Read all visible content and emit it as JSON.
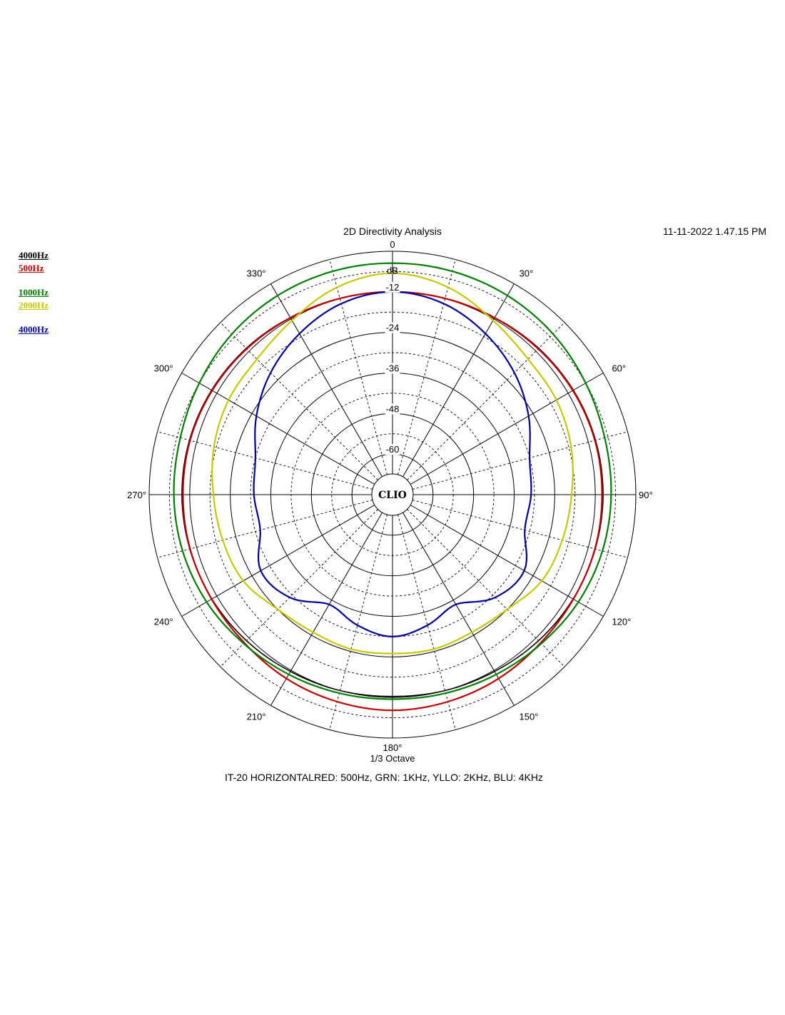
{
  "header": {
    "title": "2D Directivity Analysis",
    "timestamp": "11-11-2022 1.47.15 PM"
  },
  "footer": {
    "resolution_label": "1/3 Octave",
    "caption": "IT-20 HORIZONTALRED: 500Hz, GRN: 1KHz, YLLO: 2KHz, BLU: 4KHz"
  },
  "logo": {
    "text": "CLIO"
  },
  "legend": [
    {
      "label": "4000Hz",
      "color": "#000000"
    },
    {
      "label": "500Hz",
      "color": "#c00000"
    },
    {
      "label": "1000Hz",
      "color": "#008000"
    },
    {
      "label": "2000Hz",
      "color": "#c8c800"
    },
    {
      "label": "4000Hz",
      "color": "#000099"
    }
  ],
  "chart_data": {
    "type": "polar",
    "title": "2D Directivity Analysis",
    "radial_axis": {
      "unit": "dB",
      "range": [
        -72,
        0
      ],
      "tick_values": [
        0,
        -12,
        -24,
        -36,
        -48,
        -60
      ],
      "tick_labels": [
        "0",
        "-12",
        "-24",
        "-36",
        "-48",
        "-60"
      ]
    },
    "angular_axis": {
      "unit": "deg",
      "direction": "clockwise",
      "zero_position": "top",
      "tick_values": [
        0,
        30,
        60,
        90,
        120,
        150,
        180,
        210,
        240,
        270,
        300,
        330
      ],
      "tick_labels": [
        "0",
        "30°",
        "60°",
        "90°",
        "120°",
        "150°",
        "180°",
        "210°",
        "240°",
        "270°",
        "300°",
        "330°"
      ]
    },
    "grid": true,
    "legend_position": "top-left",
    "theta": [
      0,
      15,
      30,
      45,
      60,
      75,
      90,
      105,
      120,
      135,
      150,
      165,
      180,
      195,
      210,
      225,
      240,
      255,
      270,
      285,
      300,
      315,
      330,
      345
    ],
    "series": [
      {
        "name": "4000Hz",
        "color": "#000000",
        "values": [
          -12.0,
          -11.9,
          -11.5,
          -10.8,
          -10.2,
          -9.8,
          -9.7,
          -9.9,
          -10.3,
          -10.9,
          -11.6,
          -12.0,
          -12.3,
          -12.0,
          -11.6,
          -10.9,
          -10.3,
          -9.9,
          -9.7,
          -9.8,
          -10.2,
          -10.8,
          -11.5,
          -11.9
        ]
      },
      {
        "name": "500Hz",
        "color": "#c00000",
        "values": [
          -12.0,
          -11.9,
          -11.6,
          -11.0,
          -10.4,
          -10.0,
          -10.0,
          -10.0,
          -10.2,
          -10.0,
          -9.2,
          -8.6,
          -8.2,
          -8.6,
          -9.2,
          -10.0,
          -10.2,
          -10.0,
          -10.0,
          -10.0,
          -10.4,
          -11.0,
          -11.6,
          -11.9
        ]
      },
      {
        "name": "1000Hz",
        "color": "#008000",
        "values": [
          -3.5,
          -3.6,
          -4.0,
          -4.8,
          -6.0,
          -7.0,
          -7.3,
          -7.7,
          -8.5,
          -9.7,
          -10.6,
          -11.2,
          -11.5,
          -11.2,
          -10.6,
          -9.7,
          -8.5,
          -7.7,
          -7.3,
          -7.0,
          -6.0,
          -4.8,
          -4.0,
          -3.6
        ]
      },
      {
        "name": "2000Hz",
        "color": "#c8c800",
        "values": [
          -6.5,
          -8.5,
          -12.5,
          -15.3,
          -16.0,
          -17.3,
          -19.0,
          -20.0,
          -21.0,
          -24.0,
          -25.0,
          -24.7,
          -25.0,
          -24.7,
          -25.0,
          -24.0,
          -21.0,
          -20.0,
          -19.0,
          -17.3,
          -16.0,
          -15.3,
          -12.5,
          -8.5
        ]
      },
      {
        "name": "4000Hz",
        "color": "#000099",
        "values": [
          -12.0,
          -13.5,
          -17.0,
          -21.0,
          -25.5,
          -30.0,
          -31.0,
          -31.5,
          -27.0,
          -29.0,
          -34.5,
          -32.0,
          -30.0,
          -32.0,
          -34.5,
          -29.0,
          -27.0,
          -31.5,
          -31.0,
          -30.0,
          -25.5,
          -21.0,
          -17.0,
          -13.5
        ]
      }
    ]
  }
}
